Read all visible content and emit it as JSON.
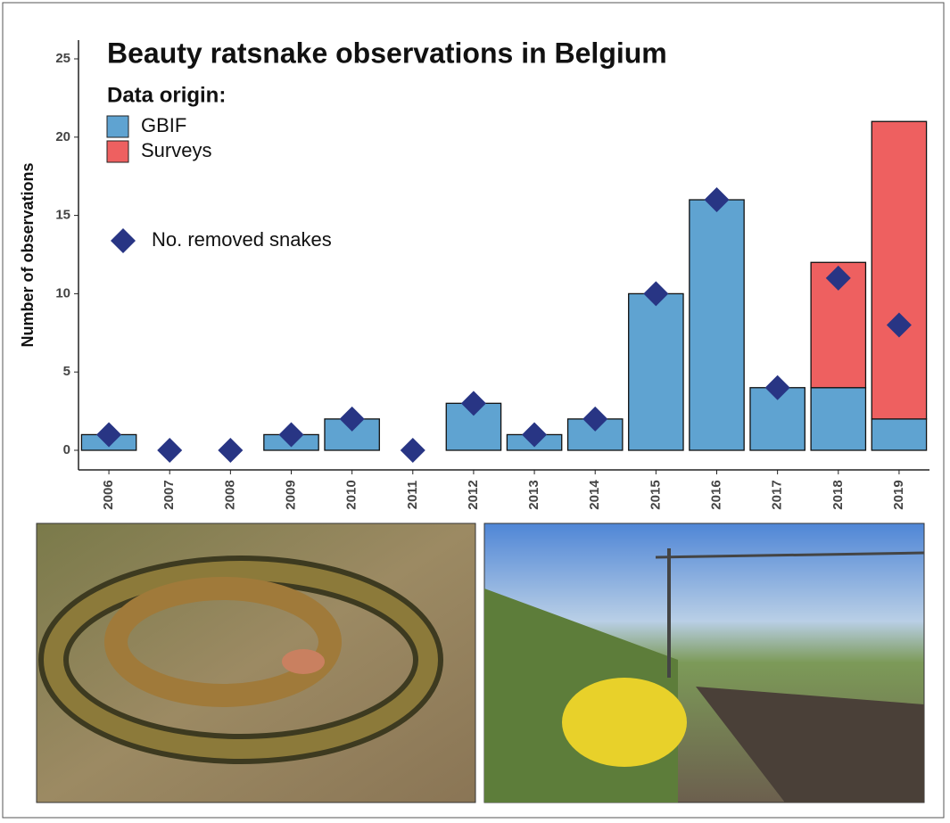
{
  "chart_data": {
    "type": "bar",
    "stacked": true,
    "title": "Beauty ratsnake observations in Belgium",
    "y_label": "Number of observations",
    "legend_title": "Data origin:",
    "categories": [
      "2006",
      "2007",
      "2008",
      "2009",
      "2010",
      "2011",
      "2012",
      "2013",
      "2014",
      "2015",
      "2016",
      "2017",
      "2018",
      "2019"
    ],
    "series": [
      {
        "name": "GBIF",
        "color": "#5fa3d1",
        "values": [
          1,
          0,
          0,
          1,
          2,
          0,
          3,
          1,
          2,
          10,
          16,
          4,
          4,
          2
        ]
      },
      {
        "name": "Surveys",
        "color": "#ee6060",
        "values": [
          0,
          0,
          0,
          0,
          0,
          0,
          0,
          0,
          0,
          0,
          0,
          0,
          8,
          19
        ]
      },
      {
        "name": "No. removed snakes",
        "type": "scatter",
        "color": "#283584",
        "values": [
          1,
          0,
          0,
          1,
          2,
          0,
          3,
          1,
          2,
          10,
          16,
          4,
          11,
          8
        ]
      }
    ],
    "ylim": [
      0,
      25
    ],
    "yticks": [
      0,
      5,
      10,
      15,
      20,
      25
    ],
    "grid": false
  }
}
